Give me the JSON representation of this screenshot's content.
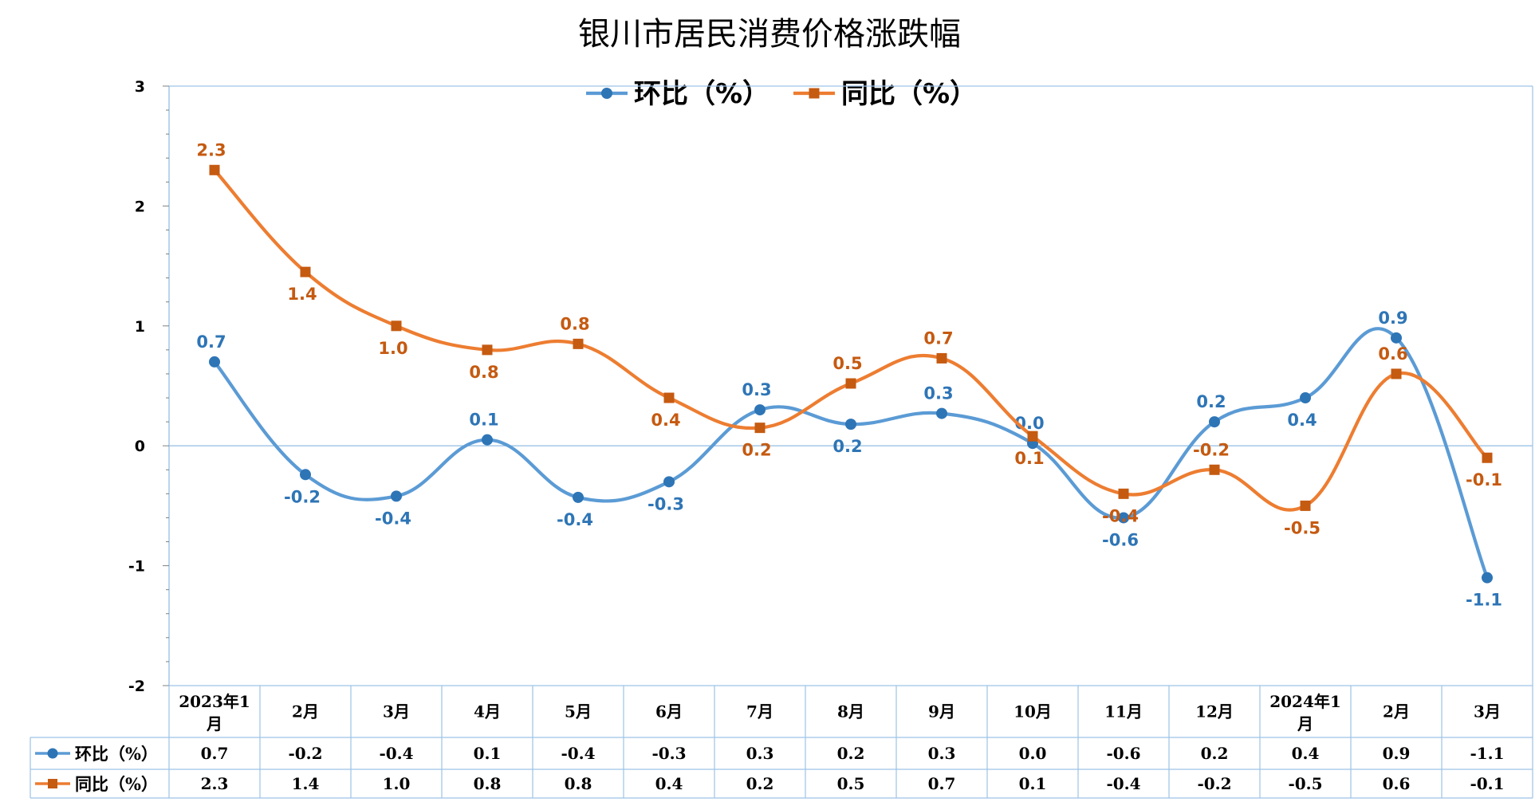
{
  "chart_data": {
    "type": "line",
    "title": "银川市居民消费价格涨跌幅",
    "categories": [
      [
        "2023年1",
        "月"
      ],
      [
        "2月"
      ],
      [
        "3月"
      ],
      [
        "4月"
      ],
      [
        "5月"
      ],
      [
        "6月"
      ],
      [
        "7月"
      ],
      [
        "8月"
      ],
      [
        "9月"
      ],
      [
        "10月"
      ],
      [
        "11月"
      ],
      [
        "12月"
      ],
      [
        "2024年1",
        "月"
      ],
      [
        "2月"
      ],
      [
        "3月"
      ]
    ],
    "series": [
      {
        "name": "环比（%）",
        "color": "#5B9BD5",
        "marker": "circle",
        "values": [
          0.7,
          -0.24,
          -0.42,
          0.05,
          -0.43,
          -0.3,
          0.3,
          0.18,
          0.27,
          0.02,
          -0.6,
          0.2,
          0.4,
          0.9,
          -1.1
        ],
        "labels": [
          "0.7",
          "-0.2",
          "-0.4",
          "0.1",
          "-0.4",
          "-0.3",
          "0.3",
          "0.2",
          "0.3",
          "0.0",
          "-0.6",
          "0.2",
          "0.4",
          "0.9",
          "-1.1"
        ]
      },
      {
        "name": "同比（%）",
        "color": "#ED7D31",
        "marker": "square",
        "values": [
          2.3,
          1.45,
          1.0,
          0.8,
          0.85,
          0.4,
          0.15,
          0.52,
          0.73,
          0.08,
          -0.4,
          -0.2,
          -0.5,
          0.6,
          -0.1
        ],
        "labels": [
          "2.3",
          "1.4",
          "1.0",
          "0.8",
          "0.8",
          "0.4",
          "0.2",
          "0.5",
          "0.7",
          "0.1",
          "-0.4",
          "-0.2",
          "-0.5",
          "0.6",
          "-0.1"
        ]
      }
    ],
    "ylim": [
      -2,
      3
    ],
    "yticks": [
      "3",
      "2",
      "1",
      "0",
      "-1",
      "-2"
    ],
    "legend_position": "top-center",
    "data_table": true
  }
}
